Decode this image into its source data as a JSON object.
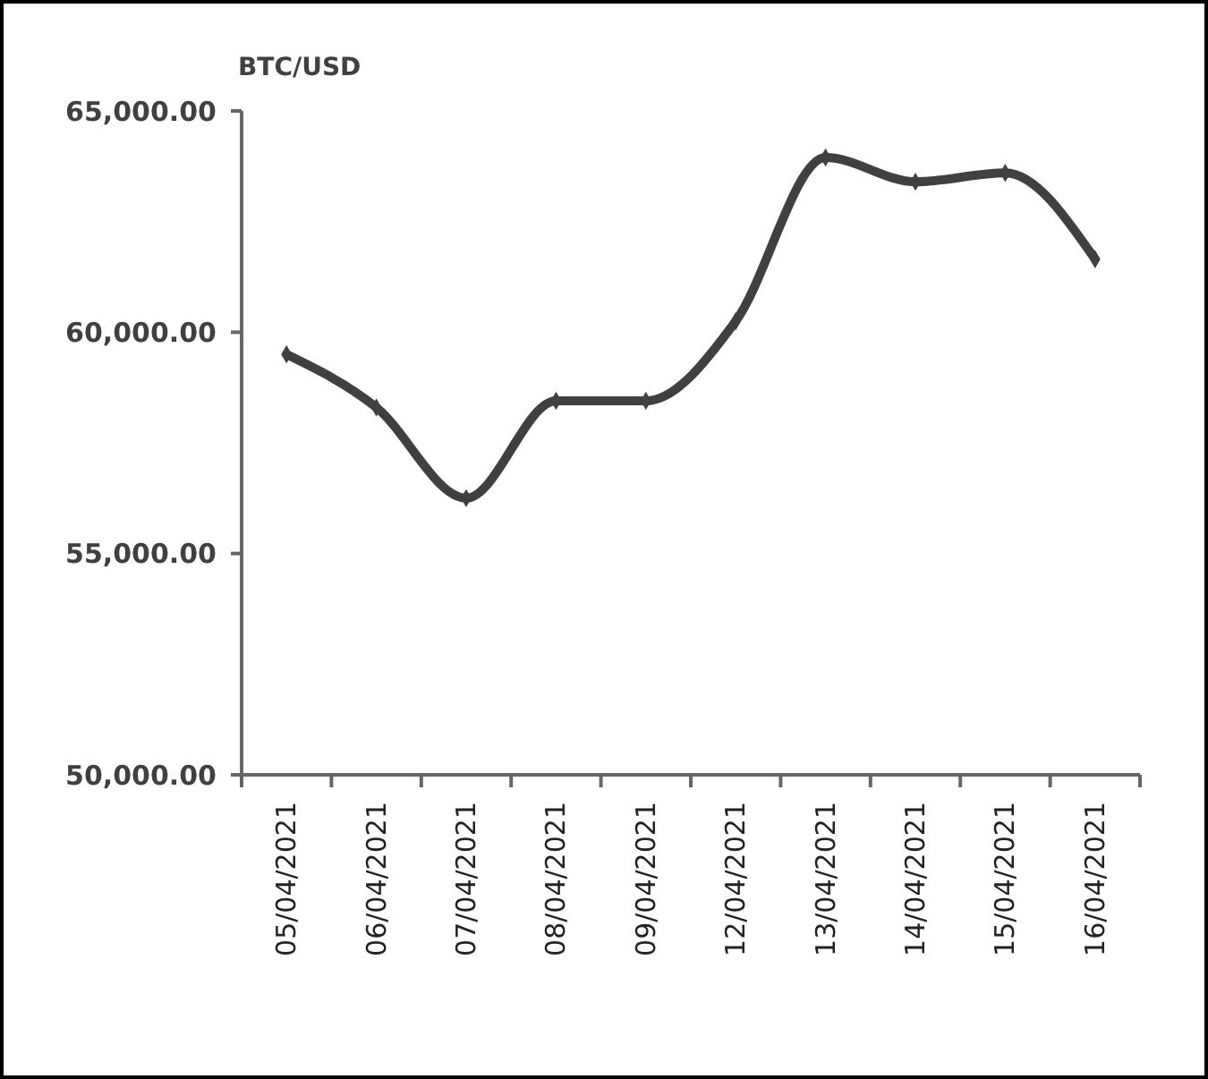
{
  "chart_data": {
    "type": "line",
    "ylabel": "BTC/USD",
    "categories": [
      "05/04/2021",
      "06/04/2021",
      "07/04/2021",
      "08/04/2021",
      "09/04/2021",
      "12/04/2021",
      "13/04/2021",
      "14/04/2021",
      "15/04/2021",
      "16/04/2021"
    ],
    "series": [
      {
        "color": "#404040",
        "values": [
          59500,
          58300,
          56250,
          58450,
          58450,
          60250,
          63950,
          63400,
          63600,
          61650
        ]
      }
    ],
    "ylim": [
      50000,
      65000
    ],
    "yticks": [
      {
        "value": 50000,
        "label": "50,000.00"
      },
      {
        "value": 55000,
        "label": "55,000.00"
      },
      {
        "value": 60000,
        "label": "60,000.00"
      },
      {
        "value": 65000,
        "label": "65,000.00"
      }
    ],
    "grid": false,
    "marker": "diamond",
    "line_style": "solid"
  }
}
